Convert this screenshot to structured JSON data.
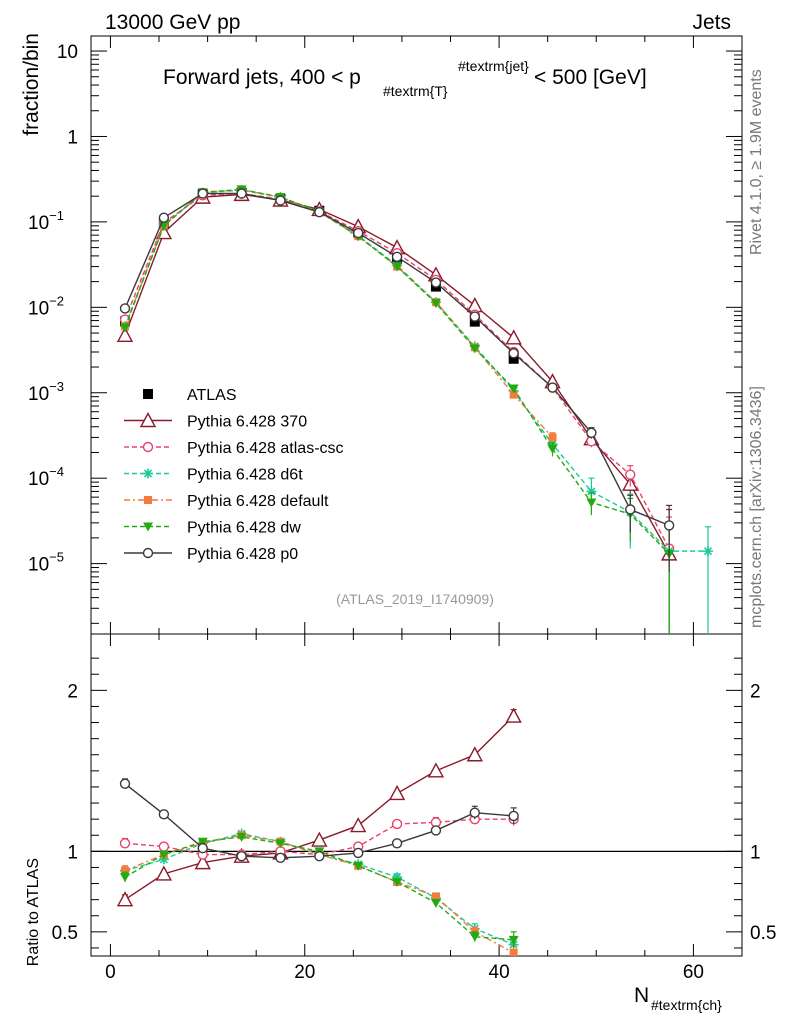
{
  "header": {
    "left": "13000 GeV pp",
    "right": "Jets"
  },
  "side_labels": {
    "rivet": "Rivet 4.1.0, ≥ 1.9M events",
    "mcplots": "mcplots.cern.ch [arXiv:1306.3436]"
  },
  "title": {
    "main": "Forward jets, 400 < p",
    "sub": "#textrm{T}",
    "sup": "#textrm{jet}",
    "tail": " < 500 [GeV]"
  },
  "analysis_id": "(ATLAS_2019_I1740909)",
  "axes": {
    "ylabel_main": "fraction/bin",
    "ylabel_ratio": "Ratio to ATLAS",
    "xlabel_main": "N",
    "xlabel_sub": "#textrm{ch}"
  },
  "chart_data": {
    "type": "line",
    "xlim": [
      -2,
      65
    ],
    "ylim_main": [
      1.5e-06,
      15
    ],
    "ylim_ratio": [
      0.35,
      2.35
    ],
    "x_ticks": [
      0,
      20,
      40,
      60
    ],
    "x_tick_labels": [
      "0",
      "20",
      "40",
      "60"
    ],
    "y_ticks_main": [
      {
        "v": 10,
        "label": "10",
        "sup": ""
      },
      {
        "v": 1,
        "label": "1",
        "sup": ""
      },
      {
        "v": 0.1,
        "label": "10",
        "sup": "−1"
      },
      {
        "v": 0.01,
        "label": "10",
        "sup": "−2"
      },
      {
        "v": 0.001,
        "label": "10",
        "sup": "−3"
      },
      {
        "v": 0.0001,
        "label": "10",
        "sup": "−4"
      },
      {
        "v": 1e-05,
        "label": "10",
        "sup": "−5"
      }
    ],
    "y_ticks_ratio": [
      {
        "v": 0.5,
        "label": "0.5"
      },
      {
        "v": 1,
        "label": "1"
      },
      {
        "v": 2,
        "label": "2"
      }
    ],
    "data": {
      "name": "ATLAS",
      "x": [
        1.5,
        5.5,
        9.5,
        13.5,
        17.5,
        21.5,
        25.5,
        29.5,
        33.5,
        37.5,
        41.5
      ],
      "y": [
        0.0068,
        0.095,
        0.21,
        0.22,
        0.185,
        0.135,
        0.075,
        0.037,
        0.0175,
        0.0068,
        0.0025
      ]
    },
    "series": [
      {
        "name": "Pythia 6.428 370",
        "color": "#8b1a2b",
        "dash": "",
        "marker": "triangle-open",
        "x": [
          1.5,
          5.5,
          9.5,
          13.5,
          17.5,
          21.5,
          25.5,
          29.5,
          33.5,
          37.5,
          41.5,
          45.5,
          49.5,
          53.5,
          57.5
        ],
        "y": [
          0.0047,
          0.075,
          0.195,
          0.21,
          0.18,
          0.14,
          0.088,
          0.05,
          0.024,
          0.0105,
          0.0044,
          0.00135,
          0.00029,
          8.5e-05,
          1.3e-05
        ],
        "yerr": [
          0,
          0,
          0,
          0,
          0,
          0,
          0,
          0,
          0,
          0,
          0,
          8e-05,
          4e-05,
          2e-05,
          3e-05
        ],
        "ratio": [
          0.7,
          0.86,
          0.93,
          0.97,
          0.99,
          1.07,
          1.16,
          1.36,
          1.5,
          1.6,
          1.84
        ],
        "rerr": [
          0.03,
          0,
          0,
          0,
          0,
          0,
          0,
          0,
          0,
          0,
          0.04
        ]
      },
      {
        "name": "Pythia 6.428 atlas-csc",
        "color": "#e8436a",
        "dash": "5,3",
        "marker": "circle-open",
        "x": [
          1.5,
          5.5,
          9.5,
          13.5,
          17.5,
          21.5,
          25.5,
          29.5,
          33.5,
          37.5,
          41.5,
          45.5,
          49.5,
          53.5,
          57.5
        ],
        "y": [
          0.0072,
          0.098,
          0.205,
          0.215,
          0.185,
          0.133,
          0.078,
          0.043,
          0.021,
          0.0082,
          0.003,
          0.00115,
          0.00027,
          0.00011,
          1.5e-05
        ],
        "yerr": [
          0,
          0,
          0,
          0,
          0,
          0,
          0,
          0,
          0,
          0,
          0,
          6e-05,
          4e-05,
          3e-05,
          2e-05
        ],
        "ratio": [
          1.05,
          1.03,
          0.98,
          0.98,
          1.0,
          0.98,
          1.03,
          1.17,
          1.18,
          1.2,
          1.2
        ],
        "rerr": [
          0.03,
          0,
          0,
          0,
          0,
          0,
          0,
          0,
          0.03,
          0.03,
          0.04
        ]
      },
      {
        "name": "Pythia 6.428 d6t",
        "color": "#1dc99a",
        "dash": "5,3",
        "marker": "star",
        "x": [
          1.5,
          5.5,
          9.5,
          13.5,
          17.5,
          21.5,
          25.5,
          29.5,
          33.5,
          37.5,
          41.5,
          45.5,
          49.5,
          53.5,
          57.5,
          61.5
        ],
        "y": [
          0.006,
          0.09,
          0.22,
          0.235,
          0.195,
          0.132,
          0.069,
          0.031,
          0.0115,
          0.0035,
          0.00105,
          0.00025,
          7e-05,
          4e-05,
          1.4e-05,
          1.4e-05
        ],
        "yerr": [
          0,
          0,
          0,
          0,
          0,
          0,
          0,
          0,
          0,
          0,
          0,
          5e-05,
          3e-05,
          2.5e-05,
          1.3e-05,
          1.3e-05
        ],
        "ratio": [
          0.88,
          0.95,
          1.05,
          1.11,
          1.06,
          0.98,
          0.92,
          0.84,
          0.71,
          0.52,
          0.42
        ],
        "rerr": [
          0.03,
          0,
          0,
          0,
          0,
          0,
          0,
          0.02,
          0.02,
          0.03,
          0.05
        ]
      },
      {
        "name": "Pythia 6.428 default",
        "color": "#f47c3c",
        "dash": "6,3,2,3",
        "marker": "square",
        "x": [
          1.5,
          5.5,
          9.5,
          13.5,
          17.5,
          21.5,
          25.5,
          29.5,
          33.5,
          37.5,
          41.5,
          45.5
        ],
        "y": [
          0.006,
          0.092,
          0.222,
          0.238,
          0.195,
          0.13,
          0.068,
          0.03,
          0.0115,
          0.0034,
          0.00095,
          0.0003
        ],
        "yerr": [
          0,
          0,
          0,
          0,
          0,
          0,
          0,
          0,
          0,
          0,
          0,
          4e-05
        ],
        "ratio": [
          0.88,
          0.98,
          1.05,
          1.1,
          1.06,
          0.98,
          0.91,
          0.81,
          0.72,
          0.5,
          0.37
        ],
        "rerr": [
          0.03,
          0,
          0,
          0,
          0,
          0,
          0,
          0,
          0.02,
          0.03,
          0.04
        ]
      },
      {
        "name": "Pythia 6.428 dw",
        "color": "#22aa11",
        "dash": "5,3",
        "marker": "triangle-down",
        "x": [
          1.5,
          5.5,
          9.5,
          13.5,
          17.5,
          21.5,
          25.5,
          29.5,
          33.5,
          37.5,
          41.5,
          45.5,
          49.5,
          53.5,
          57.5
        ],
        "y": [
          0.0058,
          0.09,
          0.222,
          0.24,
          0.195,
          0.132,
          0.068,
          0.03,
          0.0112,
          0.0033,
          0.00112,
          0.00022,
          5.2e-05,
          3.8e-05,
          1.3e-05
        ],
        "yerr": [
          0,
          0,
          0,
          0,
          0,
          0,
          0,
          0,
          0,
          0,
          0,
          4e-05,
          1.5e-05,
          2e-05,
          1.3e-05
        ],
        "ratio": [
          0.84,
          0.98,
          1.06,
          1.09,
          1.05,
          1.0,
          0.91,
          0.81,
          0.68,
          0.47,
          0.45
        ],
        "rerr": [
          0.03,
          0,
          0,
          0,
          0,
          0,
          0,
          0,
          0.02,
          0.03,
          0.05
        ]
      },
      {
        "name": "Pythia 6.428 p0",
        "color": "#3a3a3a",
        "dash": "",
        "marker": "circle-open",
        "x": [
          1.5,
          5.5,
          9.5,
          13.5,
          17.5,
          21.5,
          25.5,
          29.5,
          33.5,
          37.5,
          41.5,
          45.5,
          49.5,
          53.5,
          57.5
        ],
        "y": [
          0.0097,
          0.112,
          0.215,
          0.215,
          0.178,
          0.13,
          0.074,
          0.039,
          0.0195,
          0.0078,
          0.0029,
          0.00115,
          0.00034,
          4.3e-05,
          2.8e-05
        ],
        "yerr": [
          0,
          0,
          0,
          0,
          0,
          0,
          0,
          0,
          0,
          0,
          0,
          5e-05,
          5e-05,
          2e-05,
          2e-05
        ],
        "ratio": [
          1.42,
          1.23,
          1.02,
          0.97,
          0.96,
          0.97,
          0.99,
          1.05,
          1.13,
          1.24,
          1.22
        ],
        "rerr": [
          0.03,
          0,
          0,
          0,
          0,
          0,
          0,
          0,
          0.02,
          0.04,
          0.05
        ]
      }
    ]
  }
}
